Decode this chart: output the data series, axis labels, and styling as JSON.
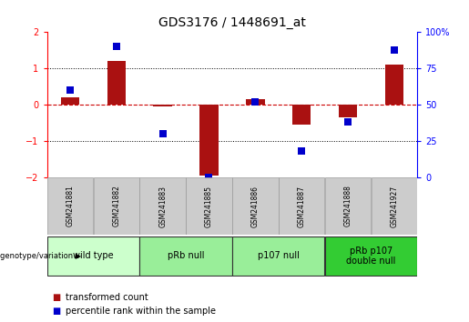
{
  "title": "GDS3176 / 1448691_at",
  "samples": [
    "GSM241881",
    "GSM241882",
    "GSM241883",
    "GSM241885",
    "GSM241886",
    "GSM241887",
    "GSM241888",
    "GSM241927"
  ],
  "red_bars": [
    0.2,
    1.2,
    -0.05,
    -1.95,
    0.15,
    -0.55,
    -0.35,
    1.1
  ],
  "blue_dot_percentiles": [
    60,
    90,
    30,
    0,
    52,
    18,
    38,
    88
  ],
  "ylim_left": [
    -2.0,
    2.0
  ],
  "ylim_right": [
    0,
    100
  ],
  "yticks_left": [
    -2,
    -1,
    0,
    1,
    2
  ],
  "yticks_right": [
    0,
    25,
    50,
    75,
    100
  ],
  "hlines_dotted": [
    -1,
    1
  ],
  "hline_zero": 0,
  "group_info": [
    {
      "start": 0,
      "end": 1,
      "label": "wild type",
      "color": "#ccffcc"
    },
    {
      "start": 2,
      "end": 3,
      "label": "pRb null",
      "color": "#99ee99"
    },
    {
      "start": 4,
      "end": 5,
      "label": "p107 null",
      "color": "#99ee99"
    },
    {
      "start": 6,
      "end": 7,
      "label": "pRb p107\ndouble null",
      "color": "#33cc33"
    }
  ],
  "bar_color": "#aa1111",
  "dot_color": "#0000cc",
  "zero_line_color": "#cc0000",
  "sample_box_color": "#cccccc",
  "sample_box_edge": "#999999",
  "bg_color": "#ffffff",
  "tick_fontsize": 7,
  "sample_fontsize": 5.5,
  "group_fontsize": 7,
  "title_fontsize": 10,
  "legend_fontsize": 7,
  "genotype_label": "genotype/variation",
  "legend_red": "transformed count",
  "legend_blue": "percentile rank within the sample",
  "bar_width": 0.4
}
